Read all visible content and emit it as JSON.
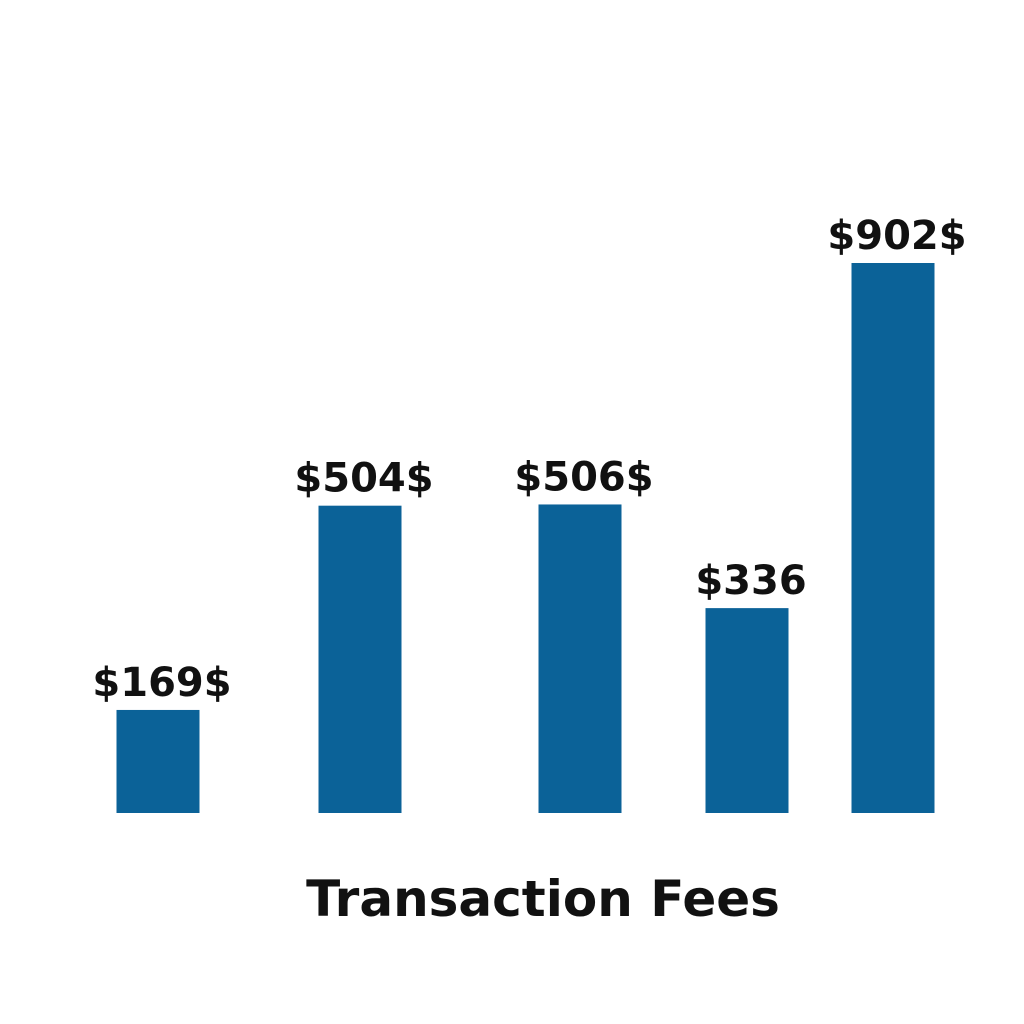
{
  "chart_data": {
    "type": "bar",
    "title": "Transaction Fees",
    "values": [
      169,
      504,
      506,
      336,
      902
    ],
    "value_labels": [
      "$169$",
      "$504$",
      "$506$",
      "$336",
      "$902$"
    ],
    "color": "#0b6298"
  }
}
